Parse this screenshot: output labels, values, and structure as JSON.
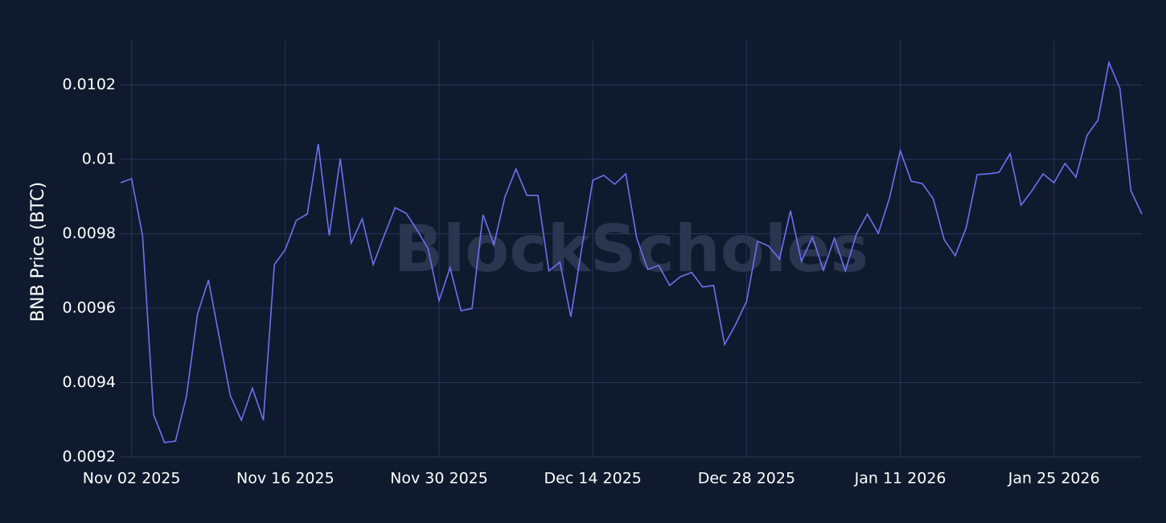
{
  "chart_data": {
    "type": "line",
    "y_label": "BNB Price (BTC)",
    "watermark": "BlockScholes",
    "x": [
      "2025-11-01",
      "2025-11-02",
      "2025-11-03",
      "2025-11-04",
      "2025-11-05",
      "2025-11-06",
      "2025-11-07",
      "2025-11-08",
      "2025-11-09",
      "2025-11-10",
      "2025-11-11",
      "2025-11-12",
      "2025-11-13",
      "2025-11-14",
      "2025-11-15",
      "2025-11-16",
      "2025-11-17",
      "2025-11-18",
      "2025-11-19",
      "2025-11-20",
      "2025-11-21",
      "2025-11-22",
      "2025-11-23",
      "2025-11-24",
      "2025-11-25",
      "2025-11-26",
      "2025-11-27",
      "2025-11-28",
      "2025-11-29",
      "2025-11-30",
      "2025-12-01",
      "2025-12-02",
      "2025-12-03",
      "2025-12-04",
      "2025-12-05",
      "2025-12-06",
      "2025-12-07",
      "2025-12-08",
      "2025-12-09",
      "2025-12-10",
      "2025-12-11",
      "2025-12-12",
      "2025-12-13",
      "2025-12-14",
      "2025-12-15",
      "2025-12-16",
      "2025-12-17",
      "2025-12-18",
      "2025-12-19",
      "2025-12-20",
      "2025-12-21",
      "2025-12-22",
      "2025-12-23",
      "2025-12-24",
      "2025-12-25",
      "2025-12-26",
      "2025-12-27",
      "2025-12-28",
      "2025-12-29",
      "2025-12-30",
      "2025-12-31",
      "2026-01-01",
      "2026-01-02",
      "2026-01-03",
      "2026-01-04",
      "2026-01-05",
      "2026-01-06",
      "2026-01-07",
      "2026-01-08",
      "2026-01-09",
      "2026-01-10",
      "2026-01-11",
      "2026-01-12",
      "2026-01-13",
      "2026-01-14",
      "2026-01-15",
      "2026-01-16",
      "2026-01-17",
      "2026-01-18",
      "2026-01-19",
      "2026-01-20",
      "2026-01-21",
      "2026-01-22",
      "2026-01-23",
      "2026-01-24",
      "2026-01-25",
      "2026-01-26",
      "2026-01-27",
      "2026-01-28",
      "2026-01-29",
      "2026-01-30",
      "2026-01-31",
      "2026-02-01",
      "2026-02-02"
    ],
    "series": [
      {
        "name": "BNB/BTC",
        "color": "#6b73f0",
        "values": [
          0.009937,
          0.009948,
          0.009795,
          0.009314,
          0.009239,
          0.009243,
          0.009364,
          0.009584,
          0.009676,
          0.009519,
          0.009364,
          0.009299,
          0.009385,
          0.009299,
          0.009717,
          0.009758,
          0.009836,
          0.009853,
          0.010041,
          0.009795,
          0.010002,
          0.009775,
          0.00984,
          0.009717,
          0.009795,
          0.00987,
          0.009855,
          0.00981,
          0.00976,
          0.00962,
          0.009709,
          0.009593,
          0.009599,
          0.009851,
          0.009771,
          0.009899,
          0.009974,
          0.009903,
          0.009903,
          0.0097,
          0.009724,
          0.009577,
          0.009763,
          0.009944,
          0.009957,
          0.009933,
          0.009961,
          0.009788,
          0.009704,
          0.009715,
          0.009661,
          0.009685,
          0.009696,
          0.009657,
          0.009661,
          0.009502,
          0.009556,
          0.009618,
          0.00978,
          0.009767,
          0.009732,
          0.009862,
          0.009726,
          0.009791,
          0.009702,
          0.009788,
          0.0097,
          0.009799,
          0.009853,
          0.009801,
          0.009894,
          0.010023,
          0.009941,
          0.009935,
          0.009894,
          0.009784,
          0.009741,
          0.009816,
          0.009959,
          0.009961,
          0.009965,
          0.010015,
          0.009877,
          0.009916,
          0.009961,
          0.009937,
          0.009989,
          0.009952,
          0.010064,
          0.010105,
          0.01026,
          0.010191,
          0.009916,
          0.009853
        ]
      }
    ],
    "xlim": [
      "2025-11-01",
      "2026-02-02"
    ],
    "xticks": [
      {
        "value": "2025-11-02",
        "label": "Nov 02 2025"
      },
      {
        "value": "2025-11-16",
        "label": "Nov 16 2025"
      },
      {
        "value": "2025-11-30",
        "label": "Nov 30 2025"
      },
      {
        "value": "2025-12-14",
        "label": "Dec 14 2025"
      },
      {
        "value": "2025-12-28",
        "label": "Dec 28 2025"
      },
      {
        "value": "2026-01-11",
        "label": "Jan 11 2026"
      },
      {
        "value": "2026-01-25",
        "label": "Jan 25 2026"
      }
    ],
    "ylim": [
      0.0092,
      0.01032
    ],
    "yticks": [
      0.0092,
      0.0094,
      0.0096,
      0.0098,
      0.01,
      0.0102
    ],
    "grid": true
  }
}
